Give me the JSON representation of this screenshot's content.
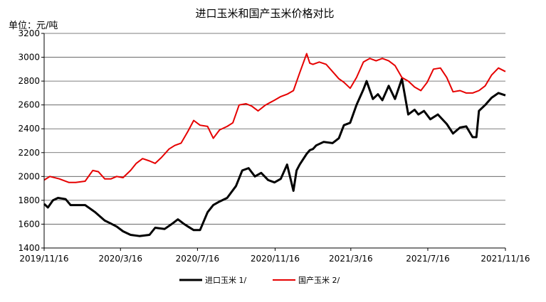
{
  "chart_data": {
    "type": "line",
    "title": "进口玉米和国产玉米价格对比",
    "unit_label": "单位：元/吨",
    "x_ticks": [
      "2019/11/16",
      "2020/3/16",
      "2020/7/16",
      "2020/11/16",
      "2021/3/16",
      "2021/7/16",
      "2021/11/16"
    ],
    "x_start": "2019-11-16",
    "x_end": "2021-11-16",
    "ylim": [
      1400,
      3200
    ],
    "y_ticks": [
      1400,
      1600,
      1800,
      2000,
      2200,
      2400,
      2600,
      2800,
      3000,
      3200
    ],
    "grid": "horizontal",
    "legend_position": "bottom",
    "series": [
      {
        "name": "进口玉米 1/",
        "color": "#000000",
        "x": [
          "2019-11-16",
          "2019-11-22",
          "2019-11-30",
          "2019-12-08",
          "2019-12-20",
          "2019-12-28",
          "2020-01-05",
          "2020-01-20",
          "2020-02-05",
          "2020-02-20",
          "2020-02-28",
          "2020-03-10",
          "2020-03-20",
          "2020-04-01",
          "2020-04-15",
          "2020-05-01",
          "2020-05-10",
          "2020-05-25",
          "2020-06-05",
          "2020-06-15",
          "2020-06-25",
          "2020-07-01",
          "2020-07-10",
          "2020-07-20",
          "2020-08-01",
          "2020-08-10",
          "2020-08-20",
          "2020-09-01",
          "2020-09-15",
          "2020-09-25",
          "2020-10-05",
          "2020-10-15",
          "2020-10-25",
          "2020-11-05",
          "2020-11-15",
          "2020-11-25",
          "2020-12-05",
          "2020-12-15",
          "2020-12-20",
          "2020-12-25",
          "2021-01-05",
          "2021-01-10",
          "2021-01-15",
          "2021-01-20",
          "2021-02-01",
          "2021-02-15",
          "2021-02-25",
          "2021-03-05",
          "2021-03-15",
          "2021-03-25",
          "2021-04-05",
          "2021-04-10",
          "2021-04-20",
          "2021-04-28",
          "2021-05-05",
          "2021-05-10",
          "2021-05-15",
          "2021-05-25",
          "2021-06-05",
          "2021-06-15",
          "2021-06-25",
          "2021-07-01",
          "2021-07-10",
          "2021-07-20",
          "2021-08-01",
          "2021-08-15",
          "2021-08-25",
          "2021-09-05",
          "2021-09-15",
          "2021-09-25",
          "2021-10-01",
          "2021-10-05",
          "2021-10-15",
          "2021-10-25",
          "2021-11-05",
          "2021-11-16"
        ],
        "values": [
          1770,
          1740,
          1800,
          1820,
          1810,
          1760,
          1760,
          1760,
          1700,
          1630,
          1610,
          1580,
          1540,
          1510,
          1500,
          1510,
          1570,
          1560,
          1600,
          1640,
          1600,
          1580,
          1550,
          1550,
          1700,
          1760,
          1790,
          1820,
          1920,
          2050,
          2070,
          2000,
          2030,
          1970,
          1950,
          1980,
          2100,
          1880,
          2050,
          2100,
          2190,
          2220,
          2230,
          2260,
          2290,
          2280,
          2320,
          2430,
          2450,
          2600,
          2730,
          2800,
          2650,
          2690,
          2640,
          2700,
          2760,
          2650,
          2820,
          2520,
          2560,
          2520,
          2550,
          2480,
          2520,
          2440,
          2360,
          2410,
          2420,
          2330,
          2330,
          2550,
          2600,
          2660,
          2700,
          2680
        ]
      },
      {
        "name": "国产玉米 2/",
        "color": "#e60000",
        "x": [
          "2019-11-16",
          "2019-11-25",
          "2019-12-10",
          "2019-12-25",
          "2020-01-05",
          "2020-01-20",
          "2020-02-01",
          "2020-02-10",
          "2020-02-20",
          "2020-03-01",
          "2020-03-10",
          "2020-03-20",
          "2020-04-01",
          "2020-04-10",
          "2020-04-20",
          "2020-05-01",
          "2020-05-10",
          "2020-05-20",
          "2020-06-01",
          "2020-06-10",
          "2020-06-20",
          "2020-07-01",
          "2020-07-10",
          "2020-07-20",
          "2020-08-01",
          "2020-08-10",
          "2020-08-20",
          "2020-09-01",
          "2020-09-10",
          "2020-09-20",
          "2020-10-01",
          "2020-10-10",
          "2020-10-20",
          "2020-11-01",
          "2020-11-15",
          "2020-11-25",
          "2020-12-05",
          "2020-12-15",
          "2020-12-25",
          "2021-01-05",
          "2021-01-10",
          "2021-01-15",
          "2021-01-25",
          "2021-02-05",
          "2021-02-15",
          "2021-02-25",
          "2021-03-05",
          "2021-03-15",
          "2021-03-25",
          "2021-04-05",
          "2021-04-15",
          "2021-04-25",
          "2021-05-05",
          "2021-05-15",
          "2021-05-25",
          "2021-06-05",
          "2021-06-15",
          "2021-06-25",
          "2021-07-05",
          "2021-07-15",
          "2021-07-25",
          "2021-08-05",
          "2021-08-15",
          "2021-08-25",
          "2021-09-05",
          "2021-09-15",
          "2021-09-25",
          "2021-10-05",
          "2021-10-15",
          "2021-10-25",
          "2021-11-05",
          "2021-11-16"
        ],
        "values": [
          1970,
          2000,
          1980,
          1950,
          1950,
          1960,
          2050,
          2040,
          1980,
          1980,
          2000,
          1990,
          2050,
          2110,
          2150,
          2130,
          2110,
          2160,
          2230,
          2260,
          2280,
          2380,
          2470,
          2430,
          2420,
          2320,
          2390,
          2420,
          2450,
          2600,
          2610,
          2590,
          2550,
          2600,
          2640,
          2670,
          2690,
          2720,
          2870,
          3030,
          2950,
          2940,
          2960,
          2940,
          2880,
          2820,
          2790,
          2740,
          2830,
          2960,
          2990,
          2970,
          2990,
          2970,
          2930,
          2830,
          2800,
          2750,
          2720,
          2790,
          2900,
          2910,
          2830,
          2710,
          2720,
          2700,
          2700,
          2720,
          2760,
          2850,
          2910,
          2880
        ]
      }
    ]
  }
}
